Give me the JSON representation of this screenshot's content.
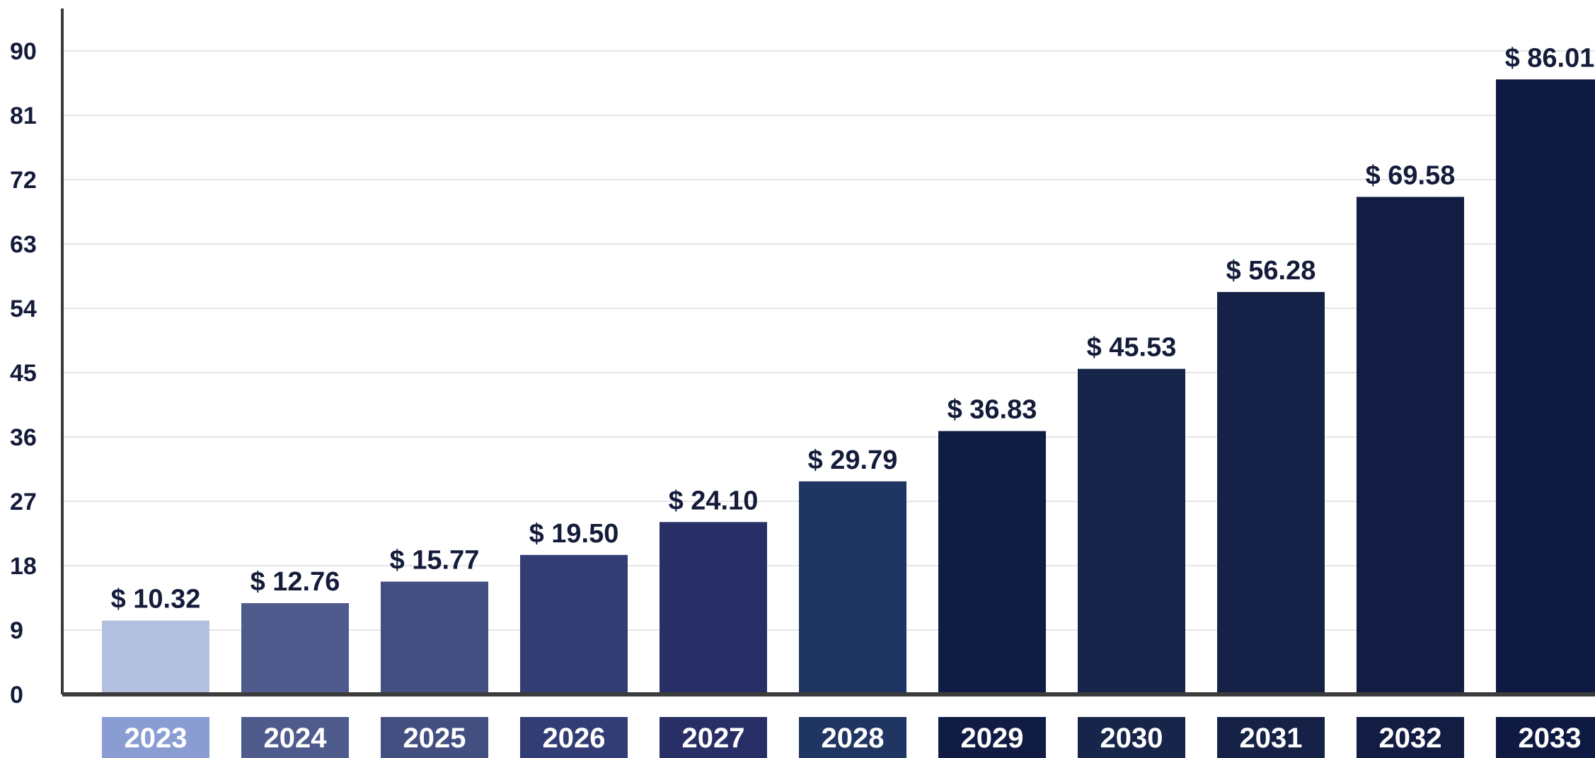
{
  "chart_data": {
    "type": "bar",
    "categories": [
      "2023",
      "2024",
      "2025",
      "2026",
      "2027",
      "2028",
      "2029",
      "2030",
      "2031",
      "2032",
      "2033"
    ],
    "values": [
      10.32,
      12.76,
      15.77,
      19.5,
      24.1,
      29.79,
      36.83,
      45.53,
      56.28,
      69.58,
      86.01
    ],
    "value_labels": [
      "$ 10.32",
      "$ 12.76",
      "$ 15.77",
      "$ 19.50",
      "$ 24.10",
      "$ 29.79",
      "$ 36.83",
      "$ 45.53",
      "$ 56.28",
      "$ 69.58",
      "$ 86.01"
    ],
    "y_ticks": [
      "0",
      "9",
      "18",
      "27",
      "36",
      "45",
      "54",
      "63",
      "72",
      "81",
      "90"
    ],
    "ylim": [
      0,
      90
    ],
    "title": "",
    "xlabel": "",
    "ylabel": "",
    "grid": true,
    "legend": "none",
    "bar_colors": [
      "#b3c0df",
      "#4f5b8c",
      "#434e81",
      "#333d75",
      "#282f67",
      "#1f3562",
      "#111c44",
      "#162549",
      "#152146",
      "#131c43",
      "#0f1a42"
    ],
    "label_box_colors": [
      "#8a9dd3",
      "#4f5b8c",
      "#434e81",
      "#333d75",
      "#282f67",
      "#1f3562",
      "#111c44",
      "#162549",
      "#152146",
      "#131c43",
      "#0f1a42"
    ],
    "grid_color": "#e6e6e6",
    "axis_color": "#3c3c3c",
    "text_color": "#141c3a"
  }
}
